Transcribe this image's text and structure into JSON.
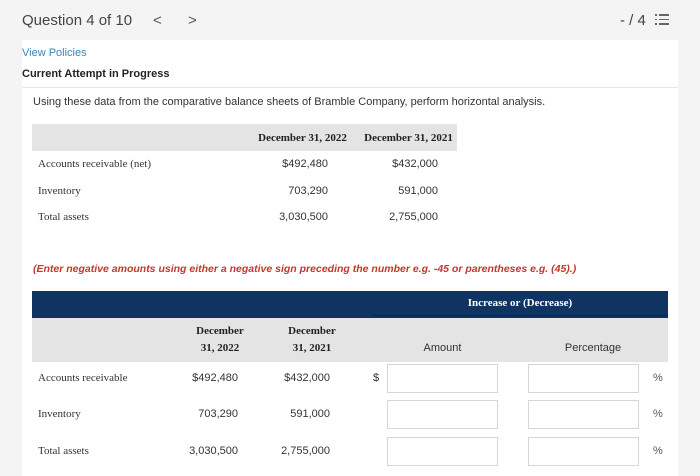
{
  "header": {
    "title": "Question 4 of 10",
    "prev": "<",
    "next": ">",
    "score": "- / 4"
  },
  "links": {
    "view_policies": "View Policies"
  },
  "status": "Current Attempt in Progress",
  "question": "Using these data from the comparative balance sheets of Bramble Company, perform horizontal analysis.",
  "data_table": {
    "columns": [
      "December 31, 2022",
      "December 31, 2021"
    ],
    "rows": [
      {
        "label": "Accounts receivable (net)",
        "y2022": "$492,480",
        "y2021": "$432,000"
      },
      {
        "label": "Inventory",
        "y2022": "703,290",
        "y2021": "591,000"
      },
      {
        "label": "Total assets",
        "y2022": "3,030,500",
        "y2021": "2,755,000"
      }
    ]
  },
  "note": "(Enter negative amounts using either a negative sign preceding the number e.g. -45 or parentheses e.g. (45).)",
  "answer_table": {
    "group_header": "Increase or (Decrease)",
    "col2022": [
      "December",
      "31, 2022"
    ],
    "col2021": [
      "December",
      "31, 2021"
    ],
    "amount": "Amount",
    "percentage": "Percentage",
    "dollar": "$",
    "percent": "%",
    "rows": [
      {
        "label": "Accounts receivable",
        "y2022": "$492,480",
        "y2021": "$432,000",
        "amount": "",
        "percentage": ""
      },
      {
        "label": "Inventory",
        "y2022": "703,290",
        "y2021": "591,000",
        "amount": "",
        "percentage": ""
      },
      {
        "label": "Total assets",
        "y2022": "3,030,500",
        "y2021": "2,755,000",
        "amount": "",
        "percentage": ""
      }
    ]
  }
}
